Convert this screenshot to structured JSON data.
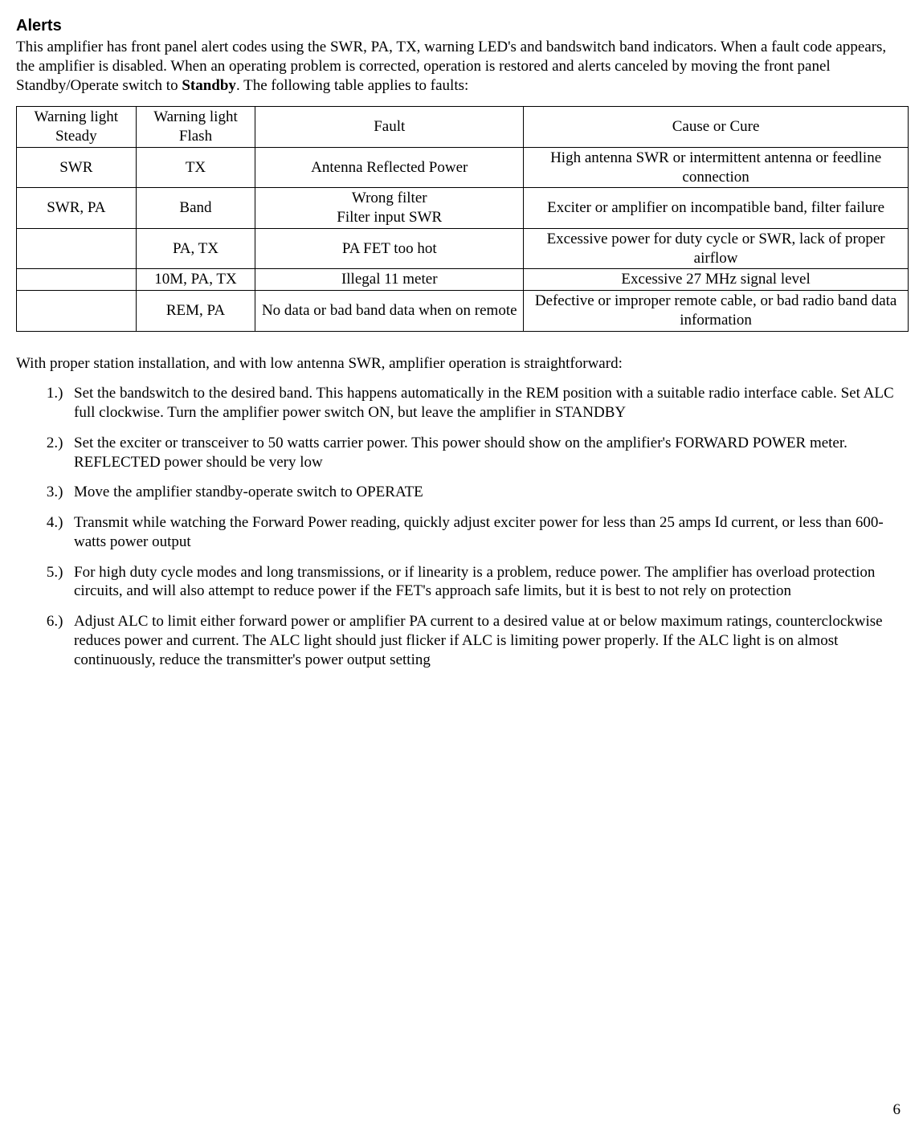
{
  "title": "Alerts",
  "intro_parts": {
    "p1": "This amplifier has front panel alert codes using the SWR, PA, TX, warning LED's and bandswitch band indicators. When a fault code appears, the amplifier is disabled. When an operating problem is corrected, operation is restored and alerts canceled by moving the front panel Standby/Operate switch to ",
    "bold": "Standby",
    "p2": ". The following table applies to faults:"
  },
  "table": {
    "headers": [
      "Warning light Steady",
      "Warning light Flash",
      "Fault",
      "Cause or Cure"
    ],
    "rows": [
      [
        "SWR",
        "TX",
        "Antenna Reflected Power",
        "High antenna SWR or intermittent antenna or feedline connection"
      ],
      [
        "SWR, PA",
        "Band",
        "Wrong filter\nFilter input SWR",
        "Exciter or amplifier on incompatible band, filter failure"
      ],
      [
        "",
        "PA, TX",
        "PA FET too hot",
        "Excessive power for duty cycle or SWR, lack of proper airflow"
      ],
      [
        "",
        "10M, PA, TX",
        "Illegal 11 meter",
        "Excessive 27 MHz signal level"
      ],
      [
        "",
        "REM, PA",
        "No data or bad band data when on remote",
        "Defective or improper remote cable, or bad radio band data information"
      ]
    ]
  },
  "lead": "With proper station installation, and with low antenna SWR, amplifier operation is straightforward:",
  "steps": [
    "Set the bandswitch to the desired band. This happens automatically in the REM position with a suitable radio interface cable. Set ALC full clockwise. Turn the amplifier power switch ON, but leave the amplifier in STANDBY",
    "Set the exciter or transceiver to 50 watts carrier power. This power should show on the amplifier's FORWARD POWER meter. REFLECTED power should be very low",
    " Move the amplifier standby-operate switch to OPERATE",
    "Transmit while watching the Forward Power reading, quickly adjust exciter power for less than 25 amps Id current, or less than 600-watts power output",
    "For high duty cycle modes and long transmissions, or if linearity is a problem, reduce power. The amplifier has overload protection circuits, and will also attempt to reduce power if the FET's approach safe limits, but it is best to not rely on protection",
    "Adjust ALC to limit either forward power or amplifier PA current to a desired value at or below maximum ratings, counterclockwise reduces power and current. The ALC light should just flicker if ALC is limiting power properly. If the ALC light  is on almost continuously, reduce the transmitter's power output setting"
  ],
  "page_number": "6"
}
